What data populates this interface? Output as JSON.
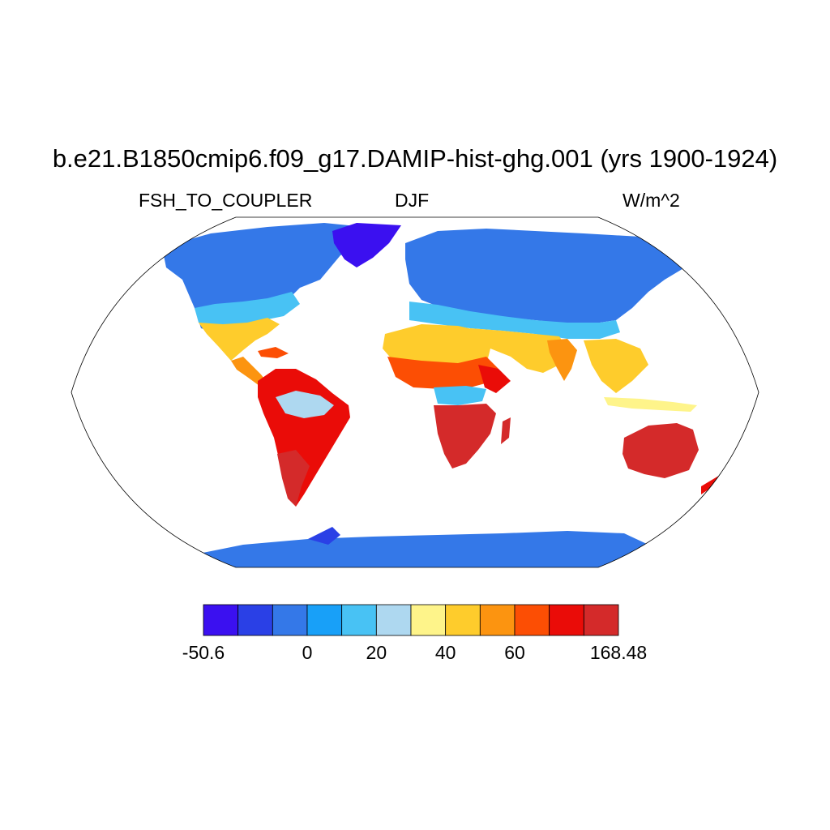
{
  "title": "b.e21.B1850cmip6.f09_g17.DAMIP-hist-ghg.001 (yrs 1900-1924)",
  "variable": "FSH_TO_COUPLER",
  "season": "DJF",
  "units": "W/m^2",
  "colorbar": {
    "colors": [
      "#3b10f0",
      "#2a40e6",
      "#3478e8",
      "#18a0f8",
      "#48c2f4",
      "#aed8f0",
      "#fef48a",
      "#fecc2c",
      "#fc9410",
      "#fc4e04",
      "#ea0c08",
      "#d42a2a"
    ],
    "tick_labels": [
      {
        "text": "-50.6",
        "boundary": 0
      },
      {
        "text": "0",
        "boundary": 3
      },
      {
        "text": "20",
        "boundary": 5
      },
      {
        "text": "40",
        "boundary": 7
      },
      {
        "text": "60",
        "boundary": 9
      },
      {
        "text": "168.48",
        "boundary": 12
      }
    ]
  }
}
